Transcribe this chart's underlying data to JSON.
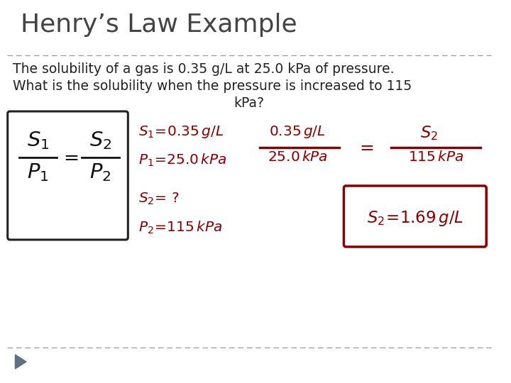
{
  "title": "Henry’s Law Example",
  "title_fontsize": 26,
  "title_color": "#444444",
  "body_line1": "The solubility of a gas is 0.35 g/L at 25.0 kPa of pressure.",
  "body_line2": "What is the solubility when the pressure is increased to 115",
  "body_line3": "kPa?",
  "body_fontsize": 13.5,
  "body_color": "#222222",
  "bg_color": "#ffffff",
  "divider_color": "#999999",
  "hw_color": "#8b0000",
  "arrow_color": "#607080"
}
